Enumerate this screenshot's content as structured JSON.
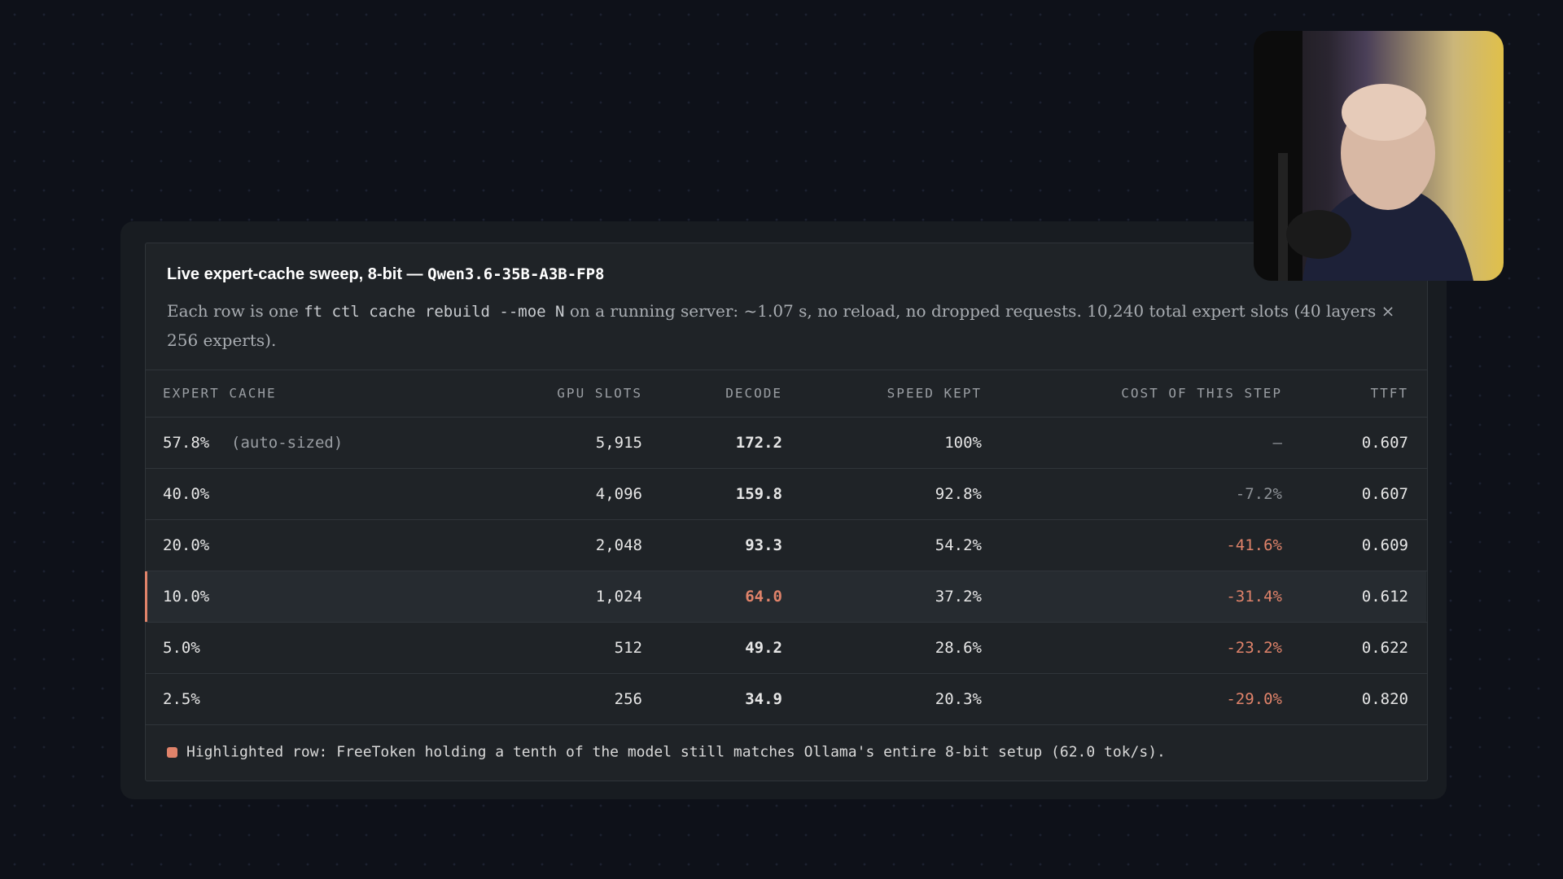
{
  "header": {
    "title": "Live expert-cache sweep, 8-bit — ",
    "title_model": "Qwen3.6-35B-A3B-FP8",
    "description": [
      "Each row is one ",
      "ft ctl cache rebuild --moe N",
      " on a running server: ~1.07 s, no reload, no dropped requests. 10,240 total expert slots (40 layers × 256 experts)."
    ]
  },
  "table": {
    "columns": [
      "EXPERT CACHE",
      "GPU SLOTS",
      "DECODE",
      "SPEED KEPT",
      "COST OF THIS STEP",
      "TTFT"
    ],
    "rows": [
      {
        "cells": [
          "57.8%",
          "5,915",
          "172.2",
          "100%",
          "—",
          "0.607"
        ],
        "note": "(auto-sized)",
        "cost_tone": "muted"
      },
      {
        "cells": [
          "40.0%",
          "4,096",
          "159.8",
          "92.8%",
          "-7.2%",
          "0.607"
        ],
        "cost_tone": "muted"
      },
      {
        "cells": [
          "20.0%",
          "2,048",
          "93.3",
          "54.2%",
          "-41.6%",
          "0.609"
        ],
        "cost_tone": "warn"
      },
      {
        "cells": [
          "10.0%",
          "1,024",
          "64.0",
          "37.2%",
          "-31.4%",
          "0.612"
        ],
        "cost_tone": "warn",
        "highlighted": true
      },
      {
        "cells": [
          "5.0%",
          "512",
          "49.2",
          "28.6%",
          "-23.2%",
          "0.622"
        ],
        "cost_tone": "warn"
      },
      {
        "cells": [
          "2.5%",
          "256",
          "34.9",
          "20.3%",
          "-29.0%",
          "0.820"
        ],
        "cost_tone": "warn"
      }
    ]
  },
  "footnote": "Highlighted row: FreeToken holding a tenth of the model still matches Ollama's entire 8-bit setup (62.0 tok/s)."
}
